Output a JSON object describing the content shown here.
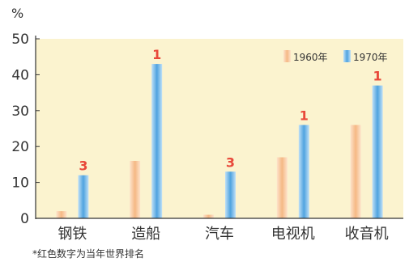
{
  "chart_data": {
    "type": "bar",
    "unit_label": "%",
    "categories": [
      "钢铁",
      "造船",
      "汽车",
      "电视机",
      "收音机"
    ],
    "series": [
      {
        "name": "1960年",
        "values": [
          2,
          16,
          1,
          17,
          26
        ]
      },
      {
        "name": "1970年",
        "values": [
          12,
          43,
          13,
          26,
          37
        ]
      }
    ],
    "rank_labels": [
      "3",
      "1",
      "3",
      "1",
      "1"
    ],
    "yticks": [
      0,
      10,
      20,
      30,
      40,
      50
    ],
    "ylim": [
      0,
      50
    ],
    "grid": false,
    "legend_position": "top-right",
    "footnote": "*红色数字为当年世界排名",
    "colors": {
      "plot_bg": "#fbf3cf",
      "series_1960": "#f7c9a0",
      "series_1970": "#6bb3e6",
      "rank": "#e8483a",
      "axis": "#333333"
    }
  }
}
